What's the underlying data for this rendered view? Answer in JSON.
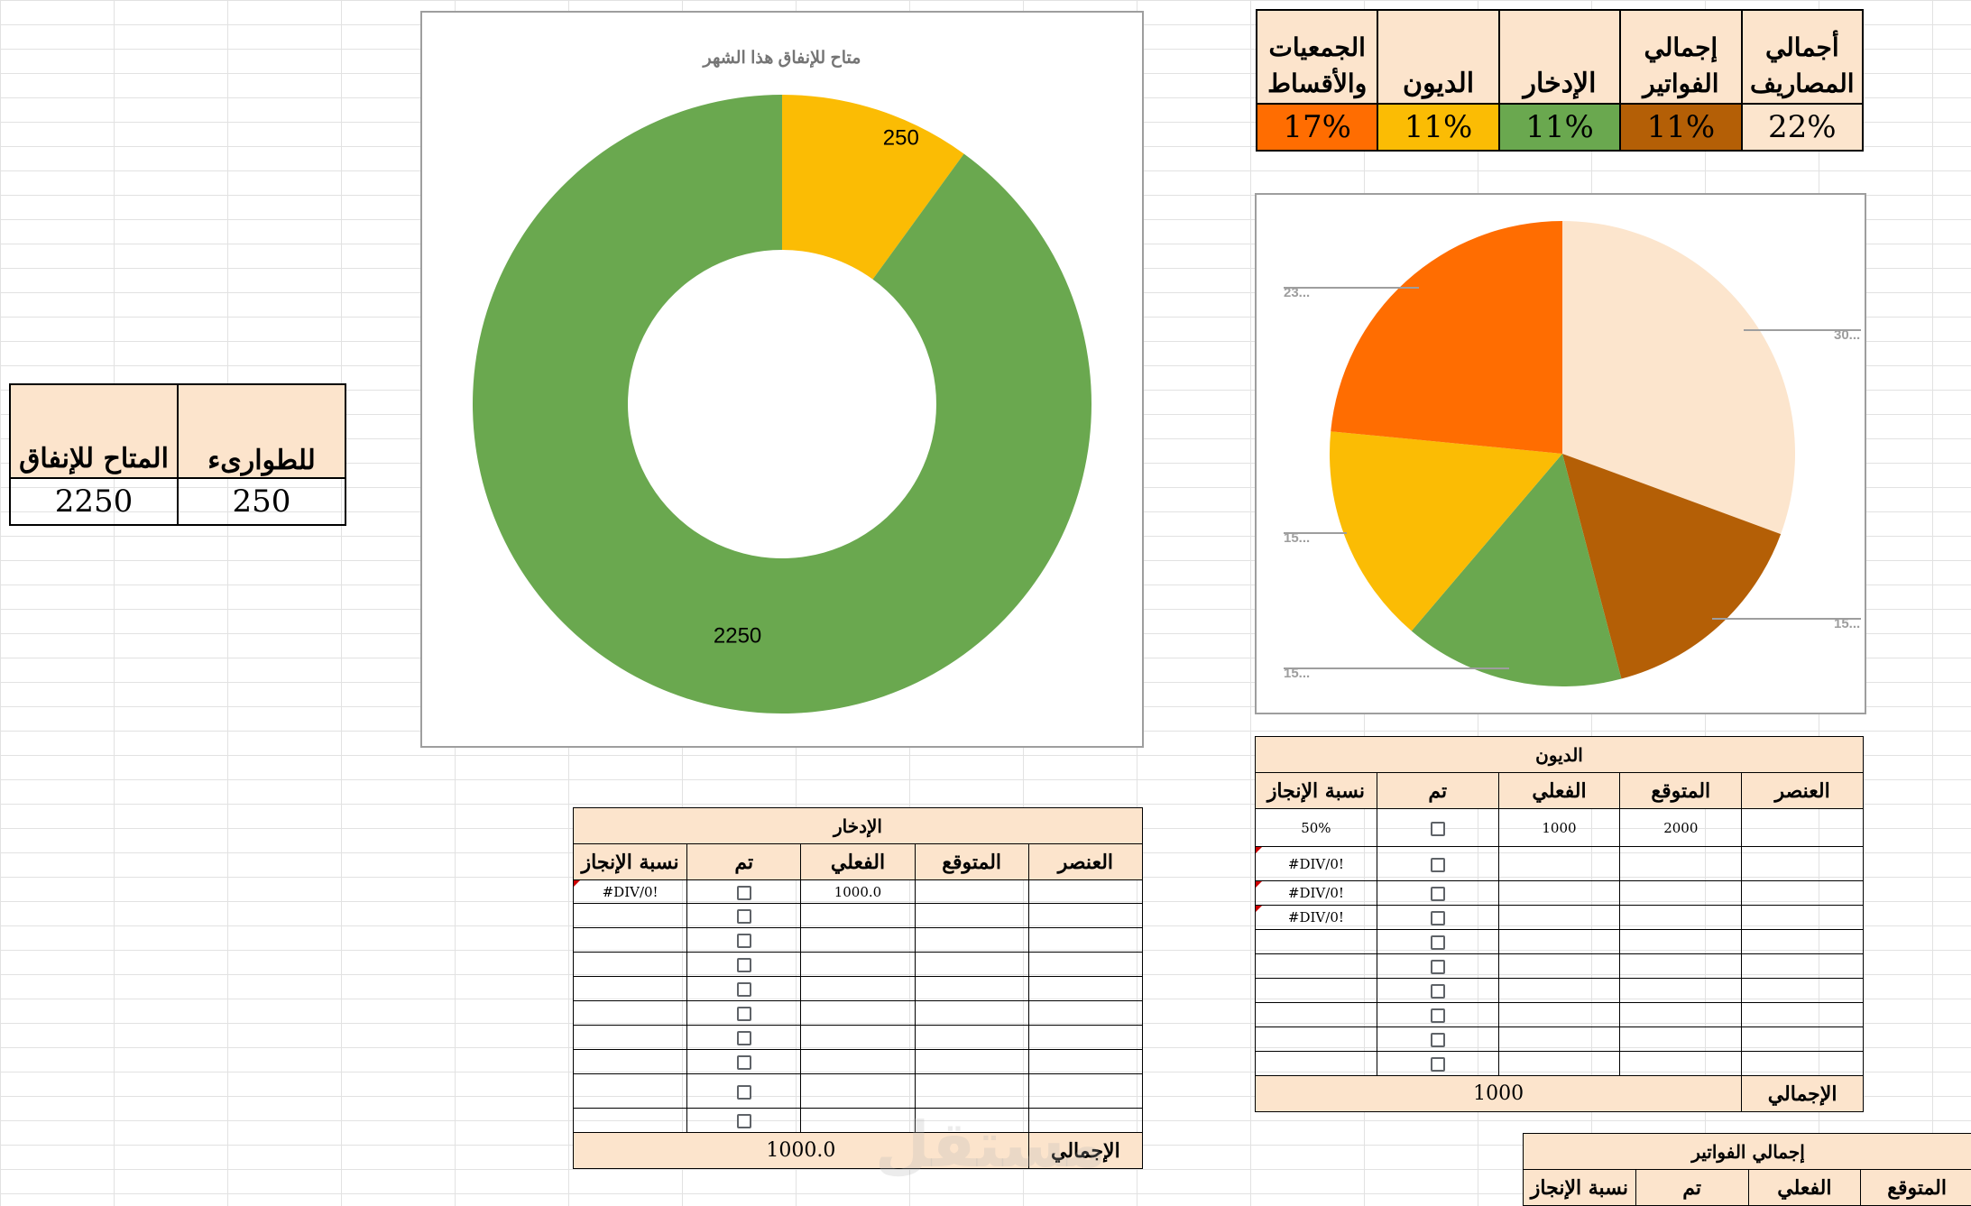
{
  "emergency_table": {
    "headers": [
      "المتاح للإنفاق",
      "للطوارىء"
    ],
    "values": [
      "2250",
      "250"
    ]
  },
  "summary_table": {
    "headers": [
      "الجمعيات والأقساط",
      "الديون",
      "الإدخار",
      "إجمالي الفواتير",
      "أجمالي المصاريف"
    ],
    "values": [
      "17%",
      "11%",
      "11%",
      "11%",
      "22%"
    ],
    "colors": [
      "#ff6d01",
      "#fbbc04",
      "#6aa84f",
      "#b45f06",
      "#fce5cd"
    ]
  },
  "donut_chart": {
    "chart_data": {
      "type": "pie",
      "title": "متاح للإنفاق هذا الشهر",
      "categories": [
        "للطوارىء",
        "المتاح للإنفاق"
      ],
      "values": [
        250,
        2250
      ],
      "labels": [
        "250",
        "2250"
      ],
      "colors": [
        "#fbbc04",
        "#6aa84f"
      ],
      "hole": 0.5
    }
  },
  "pie_chart": {
    "chart_data": {
      "type": "pie",
      "values": [
        30,
        15,
        15,
        15,
        23
      ],
      "labels": [
        "30...",
        "15...",
        "15...",
        "15...",
        "23..."
      ],
      "colors": [
        "#fce5cd",
        "#b45f06",
        "#6aa84f",
        "#fbbc04",
        "#ff6d01"
      ]
    }
  },
  "savings_table": {
    "title": "الإدخار",
    "columns": [
      "نسبة الإنجاز",
      "تم",
      "الفعلي",
      "المتوقع",
      "العنصر"
    ],
    "rows": [
      {
        "pct": "#DIV/0!",
        "actual": "1000.0",
        "expected": "",
        "item": ""
      },
      {
        "pct": "",
        "actual": "",
        "expected": "",
        "item": ""
      },
      {
        "pct": "",
        "actual": "",
        "expected": "",
        "item": ""
      },
      {
        "pct": "",
        "actual": "",
        "expected": "",
        "item": ""
      },
      {
        "pct": "",
        "actual": "",
        "expected": "",
        "item": ""
      },
      {
        "pct": "",
        "actual": "",
        "expected": "",
        "item": ""
      },
      {
        "pct": "",
        "actual": "",
        "expected": "",
        "item": ""
      },
      {
        "pct": "",
        "actual": "",
        "expected": "",
        "item": ""
      },
      {
        "pct": "",
        "actual": "",
        "expected": "",
        "item": ""
      },
      {
        "pct": "",
        "actual": "",
        "expected": "",
        "item": ""
      }
    ],
    "total_label": "الإجمالي",
    "total_value": "1000.0"
  },
  "debts_table": {
    "title": "الديون",
    "columns": [
      "نسبة الإنجاز",
      "تم",
      "الفعلي",
      "المتوقع",
      "العنصر"
    ],
    "rows": [
      {
        "pct": "50%",
        "actual": "1000",
        "expected": "2000",
        "item": ""
      },
      {
        "pct": "#DIV/0!",
        "actual": "",
        "expected": "",
        "item": ""
      },
      {
        "pct": "#DIV/0!",
        "actual": "",
        "expected": "",
        "item": ""
      },
      {
        "pct": "#DIV/0!",
        "actual": "",
        "expected": "",
        "item": ""
      },
      {
        "pct": "",
        "actual": "",
        "expected": "",
        "item": ""
      },
      {
        "pct": "",
        "actual": "",
        "expected": "",
        "item": ""
      },
      {
        "pct": "",
        "actual": "",
        "expected": "",
        "item": ""
      },
      {
        "pct": "",
        "actual": "",
        "expected": "",
        "item": ""
      },
      {
        "pct": "",
        "actual": "",
        "expected": "",
        "item": ""
      },
      {
        "pct": "",
        "actual": "",
        "expected": "",
        "item": ""
      }
    ],
    "total_label": "الإجمالي",
    "total_value": "1000"
  },
  "bills_table": {
    "title": "إجمالي الفواتير",
    "columns": [
      "نسبة الإنجاز",
      "تم",
      "الفعلي",
      "المتوقع"
    ]
  },
  "watermark": "مستقل"
}
